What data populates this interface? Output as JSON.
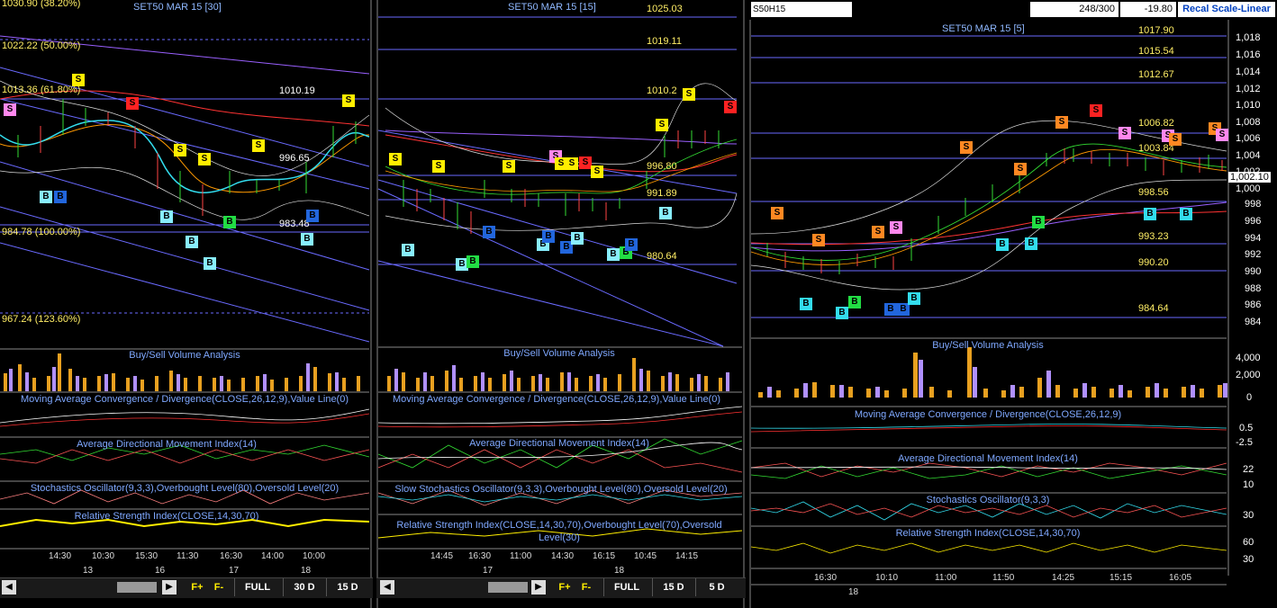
{
  "colors": {
    "buy": "#ffee00",
    "sell": "#ff2222",
    "blue": "#3a56ff"
  },
  "panels": {
    "p30": {
      "title": "SET50 MAR 15  [30]",
      "fib_labels": [
        "1030.90 (38.20%)",
        "1022.22 (50.00%)",
        "1013.36 (61.80%)",
        "984.78 (100.00%)",
        "967.24 (123.60%)"
      ],
      "price_labels": [
        "1010.19",
        "996.65",
        "983.48"
      ],
      "indicators": [
        "Buy/Sell Volume Analysis",
        "Moving Average Convergence / Divergence(CLOSE,26,12,9),Value Line(0)",
        "Average Directional Movement Index(14)",
        "Stochastics Oscillator(9,3,3),Overbought Level(80),Oversold Level(20)",
        "Relative Strength Index(CLOSE,14,30,70)"
      ],
      "times": [
        "14:30",
        "10:30",
        "15:30",
        "11:30",
        "16:30",
        "14:00",
        "10:00"
      ],
      "dates": [
        "13",
        "16",
        "17",
        "18"
      ],
      "toolbar": {
        "fplus": "F+",
        "fminus": "F-",
        "full": "FULL",
        "r1": "30 D",
        "r2": "15 D"
      }
    },
    "p15": {
      "title": "SET50 MAR 15  [15]",
      "price_labels": [
        "1025.03",
        "1019.11",
        "1010.2",
        "996.80",
        "991.89",
        "980.64"
      ],
      "indicators": [
        "Buy/Sell Volume Analysis",
        "Moving Average Convergence / Divergence(CLOSE,26,12,9),Value Line(0)",
        "Average Directional Movement Index(14)",
        "Slow Stochastics Oscillator(9,3,3),Overbought Level(80),Oversold Level(20)",
        "Relative Strength Index(CLOSE,14,30,70),Overbought Level(70),Oversold Level(30)"
      ],
      "times": [
        "14:45",
        "16:30",
        "11:00",
        "14:30",
        "16:15",
        "10:45",
        "14:15"
      ],
      "dates": [
        "17",
        "18"
      ],
      "toolbar": {
        "fplus": "F+",
        "fminus": "F-",
        "full": "FULL",
        "r1": "15 D",
        "r2": "5 D"
      }
    },
    "p5": {
      "symbol": "S50H15",
      "count": "248/300",
      "change": "-19.80",
      "recal": "Recal Scale-Linear",
      "title": "SET50 MAR 15  [5]",
      "price_labels": [
        "1017.90",
        "1015.54",
        "1012.67",
        "1006.82",
        "1003.84",
        "998.56",
        "993.23",
        "990.20",
        "984.64"
      ],
      "last_price": "1,002.10",
      "axis": [
        "1,018",
        "1,016",
        "1,014",
        "1,012",
        "1,010",
        "1,008",
        "1,006",
        "1,004",
        "1,002",
        "1,000",
        "998",
        "996",
        "994",
        "992",
        "990",
        "988",
        "986",
        "984"
      ],
      "vol_axis": [
        "4,000",
        "2,000",
        "0"
      ],
      "macd_axis": [
        "0.5",
        "-2.5"
      ],
      "adx_axis": [
        "22",
        "10"
      ],
      "sto_axis": [
        "30"
      ],
      "rsi_axis": [
        "60",
        "30"
      ],
      "indicators": [
        "Buy/Sell Volume Analysis",
        "Moving Average Convergence / Divergence(CLOSE,26,12,9)",
        "Average Directional Movement Index(14)",
        "Stochastics Oscillator(9,3,3)",
        "Relative Strength Index(CLOSE,14,30,70)"
      ],
      "times": [
        "16:30",
        "10:10",
        "11:00",
        "11:50",
        "14:25",
        "15:15",
        "16:05"
      ],
      "dates": [
        "18"
      ]
    }
  }
}
